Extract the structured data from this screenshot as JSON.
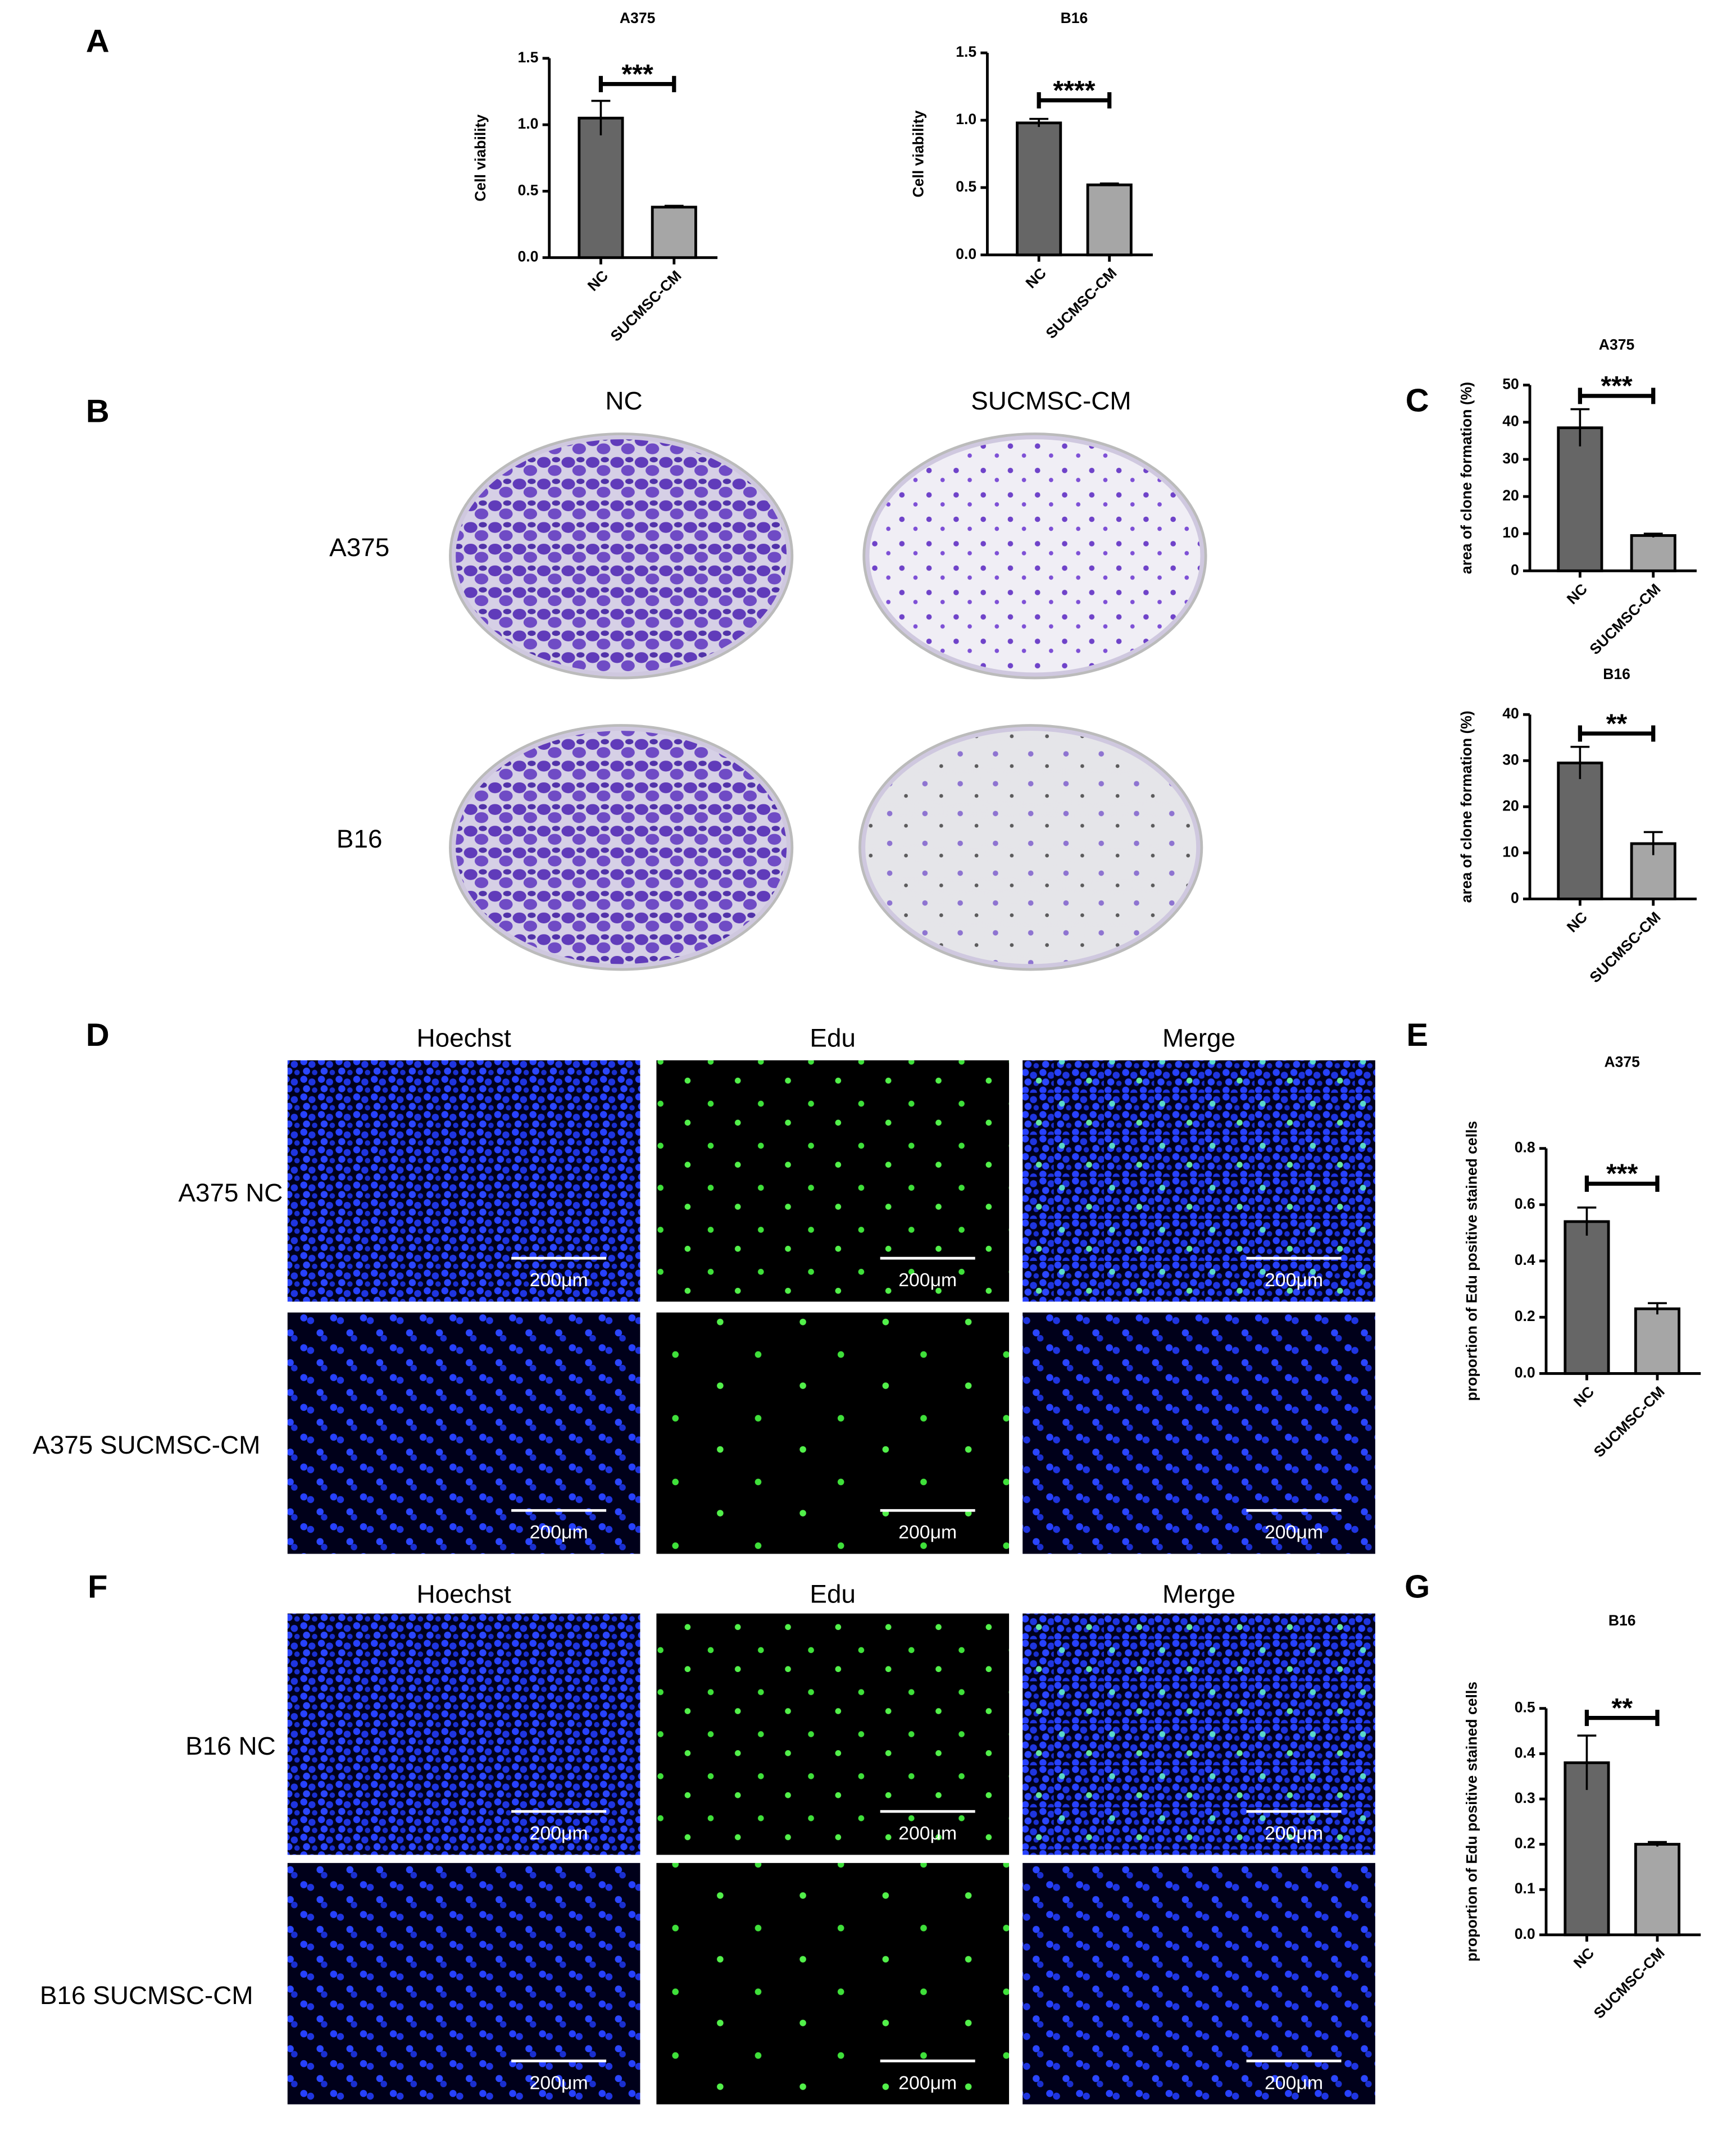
{
  "panel_labels": [
    "A",
    "B",
    "C",
    "D",
    "E",
    "F",
    "G"
  ],
  "clone_formation": {
    "columns": [
      "NC",
      "SUCMSC-CM"
    ],
    "rows": [
      "A375",
      "B16"
    ]
  },
  "edu_a375": {
    "columns": [
      "Hoechst",
      "Edu",
      "Merge"
    ],
    "rows": [
      "A375 NC",
      "A375 SUCMSC-CM"
    ],
    "scale_bar": "200μm"
  },
  "edu_b16": {
    "columns": [
      "Hoechst",
      "Edu",
      "Merge"
    ],
    "rows": [
      "B16 NC",
      "B16 SUCMSC-CM"
    ],
    "scale_bar": "200μm"
  },
  "chart_data": [
    {
      "type": "bar",
      "title": "A375",
      "ylabel": "Cell viability",
      "categories": [
        "NC",
        "SUCMSC-CM"
      ],
      "values": [
        1.05,
        0.38
      ],
      "errors": [
        0.13,
        0.01
      ],
      "colors": [
        "#666666",
        "#a6a6a6"
      ],
      "annotation": "***",
      "ylim": [
        0,
        1.5
      ],
      "yticks": [
        {
          "value": 0,
          "label": "0.0"
        },
        0.5,
        {
          "value": 1,
          "label": "1.0"
        },
        1.5
      ]
    },
    {
      "type": "bar",
      "title": "B16",
      "ylabel": "Cell viability",
      "categories": [
        "NC",
        "SUCMSC-CM"
      ],
      "values": [
        0.98,
        0.52
      ],
      "errors": [
        0.03,
        0.01
      ],
      "colors": [
        "#666666",
        "#a6a6a6"
      ],
      "annotation": "****",
      "ylim": [
        0,
        1.5
      ],
      "yticks": [
        {
          "value": 0,
          "label": "0.0"
        },
        0.5,
        {
          "value": 1,
          "label": "1.0"
        },
        1.5
      ]
    },
    {
      "type": "bar",
      "title": "A375",
      "ylabel": "area of clone formation  (%)",
      "categories": [
        "NC",
        "SUCMSC-CM"
      ],
      "values": [
        38.5,
        9.5
      ],
      "errors": [
        5,
        0.5
      ],
      "colors": [
        "#666666",
        "#a6a6a6"
      ],
      "annotation": "***",
      "ylim": [
        0,
        50
      ],
      "yticks": [
        0,
        10,
        20,
        30,
        40,
        50
      ]
    },
    {
      "type": "bar",
      "title": "B16",
      "ylabel": "area of clone formation  (%)",
      "categories": [
        "NC",
        "SUCMSC-CM"
      ],
      "values": [
        29.5,
        12
      ],
      "errors": [
        3.5,
        2.5
      ],
      "colors": [
        "#666666",
        "#a6a6a6"
      ],
      "annotation": "**",
      "ylim": [
        0,
        40
      ],
      "yticks": [
        0,
        10,
        20,
        30,
        40
      ]
    },
    {
      "type": "bar",
      "title": "A375",
      "ylabel": "proportion of Edu positive stained cells",
      "categories": [
        "NC",
        "SUCMSC-CM"
      ],
      "values": [
        0.54,
        0.23
      ],
      "errors": [
        0.05,
        0.02
      ],
      "colors": [
        "#666666",
        "#a6a6a6"
      ],
      "annotation": "***",
      "ylim": [
        0,
        0.8
      ],
      "yticks": [
        {
          "value": 0,
          "label": "0.0"
        },
        0.2,
        0.4,
        0.6,
        0.8
      ]
    },
    {
      "type": "bar",
      "title": "B16",
      "ylabel": "proportion of Edu positive stained cells",
      "categories": [
        "NC",
        "SUCMSC-CM"
      ],
      "values": [
        0.38,
        0.2
      ],
      "errors": [
        0.06,
        0.005
      ],
      "colors": [
        "#666666",
        "#a6a6a6"
      ],
      "annotation": "**",
      "ylim": [
        0,
        0.5
      ],
      "yticks": [
        {
          "value": 0,
          "label": "0.0"
        },
        0.1,
        0.2,
        0.3,
        0.4,
        0.5
      ]
    }
  ]
}
